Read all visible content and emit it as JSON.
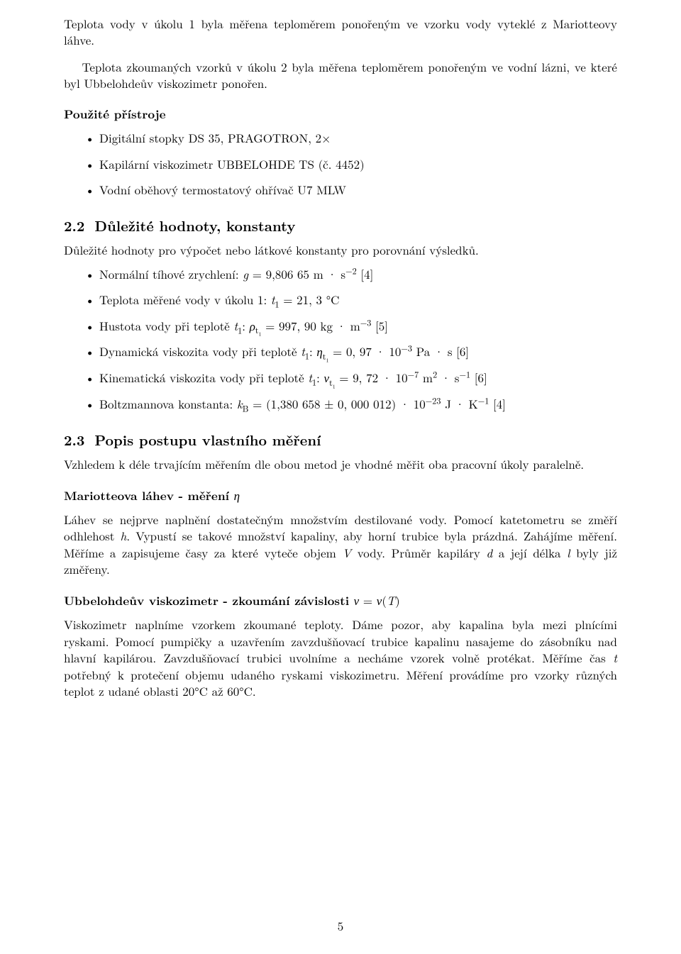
{
  "para_intro1": "Teplota vody v úkolu 1 byla měřena teploměrem ponořeným ve vzorku vody vyteklé z Mariotteovy láhve.",
  "para_intro2": "Teplota zkoumaných vzorků v úkolu 2 byla měřena teploměrem ponořeným ve vodní lázni, ve které byl Ubbelohdeův viskozimetr ponořen.",
  "heading_instruments": "Použité přístroje",
  "instruments": {
    "i1": "Digitální stopky DS 35, PRAGOTRON, 2×",
    "i2": "Kapilární viskozimetr UBBELOHDE TS (č. 4452)",
    "i3": "Vodní oběhový termostatový ohřívač U7 MLW"
  },
  "sec22_num": "2.2",
  "sec22_title": "Důležité hodnoty, konstanty",
  "sec22_intro": "Důležité hodnoty pro výpočet nebo látkové konstanty pro porovnání výsledků.",
  "constants": {
    "gravity": {
      "prefix": "Normální tíhové zrychlení: ",
      "value": "9,806 65",
      "units_m": "m · s",
      "exp": "−2",
      "cite": " [4]"
    },
    "t1": {
      "prefix": "Teplota měřené vody v úkolu 1: ",
      "value": "21, 3 °C"
    },
    "rho": {
      "prefix": "Hustota vody při teplotě ",
      "value": "997, 90",
      "units": "kg · m",
      "exp": "−3",
      "cite": " [5]"
    },
    "eta": {
      "prefix": "Dynamická viskozita vody při teplotě ",
      "value": "0, 97 · 10",
      "exp": "−3",
      "units": " Pa · s",
      "cite": " [6]"
    },
    "nu": {
      "prefix": "Kinematická viskozita vody při teplotě ",
      "value": "9, 72 · 10",
      "exp": "−7",
      "units_m": " m",
      "m_exp": "2",
      "units_s": " · s",
      "s_exp": "−1",
      "cite": " [6]"
    },
    "kb": {
      "prefix": "Boltzmannova konstanta: ",
      "value": "(1,380 658 ± 0, 000 012) · 10",
      "exp": "−23",
      "units": " J · K",
      "k_exp": "−1",
      "cite": " [4]"
    }
  },
  "sec23_num": "2.3",
  "sec23_title": "Popis postupu vlastního měření",
  "sec23_intro": "Vzhledem k déle trvajícím měřením dle obou metod je vhodné měřit oba pracovní úkoly paralelně.",
  "mariotte_heading_pre": "Mariotteova láhev - měření ",
  "mariotte_body_parts": {
    "a": "Láhev se nejprve naplnění dostatečným množstvím destilované vody. Pomocí katetometru se změří odhlehost ",
    "b": ". Vypustí se takové množství kapaliny, aby horní trubice byla prázdná. Zahájíme měření. Měříme a zapisujeme časy za které vyteče objem ",
    "c": " vody. Průměr kapiláry ",
    "d": " a její délka ",
    "e": " byly již změřeny."
  },
  "ubbelohde_heading_pre": "Ubbelohdeův viskozimetr - zkoumání závislosti ",
  "ubbelohde_body_parts": {
    "a": "Viskozimetr naplníme vzorkem zkoumané teploty. Dáme pozor, aby kapalina byla mezi plnícími ryskami. Pomocí pumpičky a uzavřením zavzdušňovací trubice kapalinu nasajeme do zásobníku nad hlavní kapilárou. Zavzdušňovací trubici uvolníme a necháme vzorek volně protékat. Měříme čas ",
    "b": " potřebný k protečení objemu udaného ryskami viskozimetru. Měření provádíme pro vzorky různých teplot z udané oblasti 20°C až 60°C."
  },
  "page_number": "5"
}
